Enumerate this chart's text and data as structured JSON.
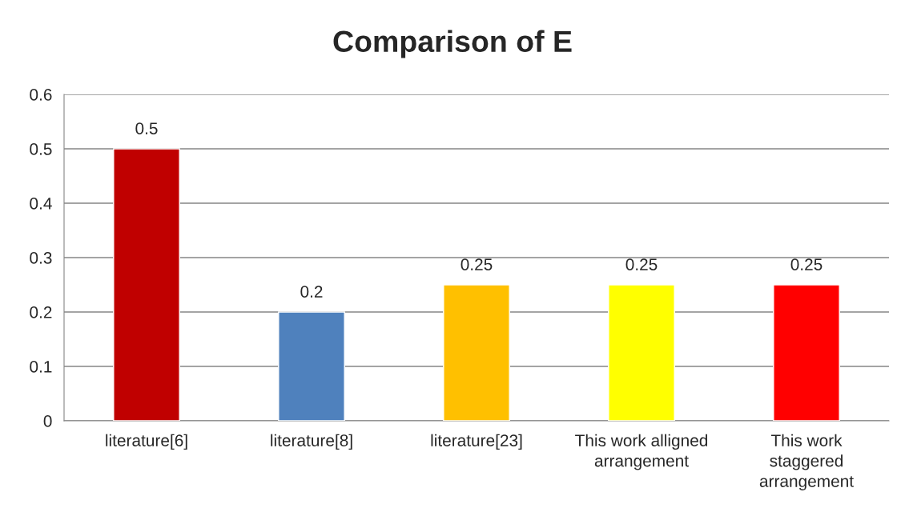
{
  "chart_data": {
    "type": "bar",
    "title": "Comparison of E",
    "categories": [
      "literature[6]",
      "literature[8]",
      "literature[23]",
      "This work alligned arrangement",
      "This work staggered arrangement"
    ],
    "values": [
      0.5,
      0.2,
      0.25,
      0.25,
      0.25
    ],
    "colors": [
      "#c00000",
      "#4f81bd",
      "#ffc000",
      "#ffff00",
      "#ff0000"
    ],
    "ylim": [
      0,
      0.6
    ],
    "yticks": [
      0,
      0.1,
      0.2,
      0.3,
      0.4,
      0.5,
      0.6
    ],
    "grid": "y",
    "data_labels": true
  }
}
